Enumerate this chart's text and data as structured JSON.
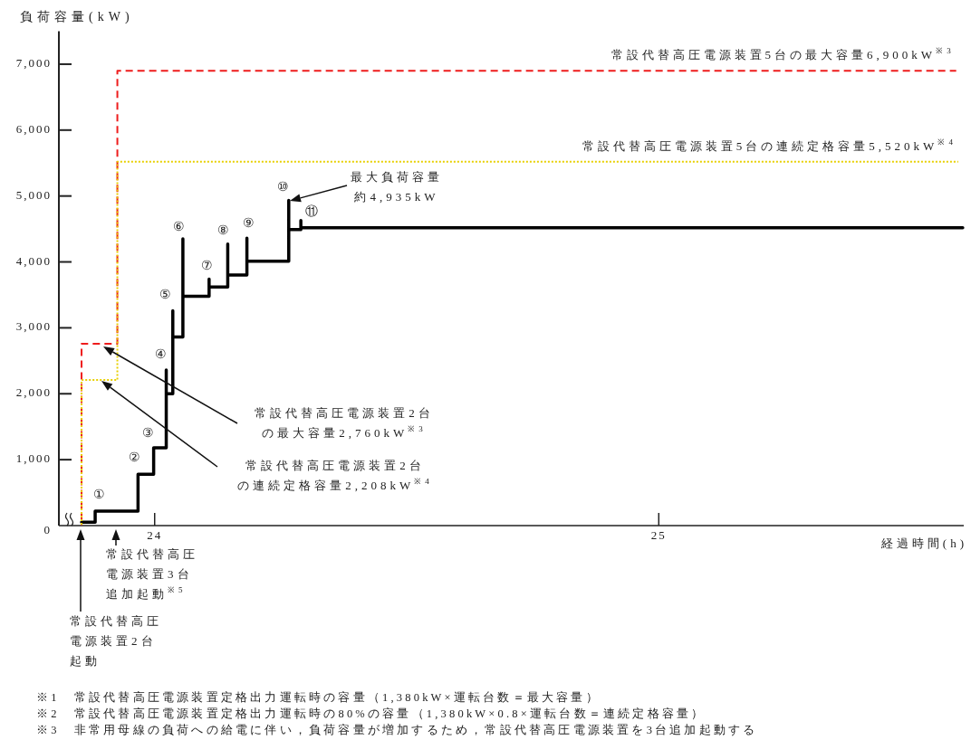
{
  "chart_data": {
    "type": "line",
    "ylabel": "負荷容量(kW)",
    "xlabel": "経過時間(h)",
    "xlim": [
      23.81,
      25.605
    ],
    "ylim": [
      0,
      7500
    ],
    "xticks": [
      24,
      25
    ],
    "yticks": [
      0,
      {
        "value": 1000,
        "label": "1,000"
      },
      {
        "value": 2000,
        "label": "2,000"
      },
      {
        "value": 3000,
        "label": "3,000"
      },
      {
        "value": 4000,
        "label": "4,000"
      },
      {
        "value": 5000,
        "label": "5,000"
      },
      {
        "value": 6000,
        "label": "6,000"
      },
      {
        "value": 7000,
        "label": "7,000"
      }
    ],
    "series": [
      {
        "color": "#000000",
        "line_style": "solid",
        "x": [
          23.855,
          23.882,
          23.882,
          23.967,
          23.967,
          23.998,
          23.998,
          24.023,
          24.023,
          24.023,
          24.036,
          24.036,
          24.036,
          24.056,
          24.056,
          24.056,
          24.108,
          24.108,
          24.108,
          24.145,
          24.145,
          24.145,
          24.183,
          24.183,
          24.183,
          24.266,
          24.266,
          24.266,
          24.29,
          24.29,
          24.29,
          25.603
        ],
        "values": [
          50,
          50,
          220,
          220,
          780,
          780,
          1180,
          1180,
          2360,
          2000,
          2000,
          3260,
          2860,
          2860,
          4350,
          3480,
          3480,
          3740,
          3620,
          3620,
          4270,
          3800,
          3800,
          4360,
          4010,
          4010,
          4935,
          4490,
          4490,
          4630,
          4520,
          4520
        ]
      },
      {
        "name": "常設代替高圧電源装置5台の最大容量6,900kW$^{※3}$",
        "color": "#ee1c1c",
        "line_style": "dashed",
        "x": [
          23.855,
          23.855,
          23.926,
          23.926,
          25.59
        ],
        "values": [
          0,
          2760,
          2760,
          6900,
          6900
        ]
      },
      {
        "name": "常設代替高圧電源装置5台の連続定格容量5,520kW$^{※4}$",
        "color": "#e8d000",
        "line_style": "dotted",
        "x": [
          23.855,
          23.855,
          23.926,
          23.926,
          25.594
        ],
        "values": [
          0,
          2208,
          2208,
          5520,
          5520
        ]
      }
    ],
    "annotations": [
      {
        "text": "①",
        "x": 23.882,
        "y": 220
      },
      {
        "text": "②",
        "x": 23.967,
        "y": 780
      },
      {
        "text": "③",
        "x": 23.998,
        "y": 1180
      },
      {
        "text": "④",
        "x": 24.023,
        "y": 2360
      },
      {
        "text": "⑤",
        "x": 24.036,
        "y": 3260
      },
      {
        "text": "⑥",
        "x": 24.056,
        "y": 4355
      },
      {
        "text": "⑦",
        "x": 24.108,
        "y": 3740
      },
      {
        "text": "⑧",
        "x": 24.145,
        "y": 4270
      },
      {
        "text": "⑨",
        "x": 24.183,
        "y": 4360
      },
      {
        "text": "⑩",
        "x": 24.266,
        "y": 4935
      },
      {
        "text": "⑪",
        "x": 24.29,
        "y": 4630
      },
      "最大負荷容量約4,935kW",
      "常設代替高圧電源装置2台の最大容量2,760kW$^{※3}$",
      "常設代替高圧電源装置2台の連続定格容量2,208kW$^{※4}$",
      "常設代替高圧電源装置3台追加起動$^{※5}$",
      "常設代替高圧電源装置2台起動",
      "※1　常設代替高圧電源装置定格出力運転時の容量（1,380kW×運転台数＝最大容量）",
      "※2　常設代替高圧電源装置定格出力運転時の80%の容量（1,380kW×0.8×運転台数＝連続定格容量）",
      "※3　非常用母線の負荷への給電に伴い，負荷容量が増加するため，常設代替高圧電源装置を3台追加起動する"
    ]
  }
}
